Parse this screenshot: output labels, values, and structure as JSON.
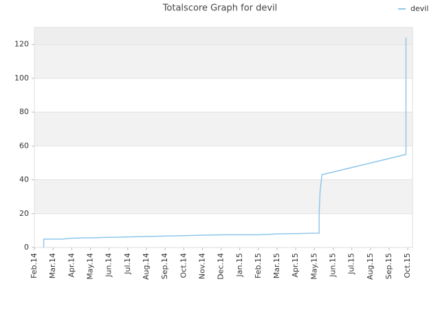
{
  "chart_data": {
    "type": "line",
    "title": "Totalscore Graph for devil",
    "x": [
      0.5,
      0.5,
      1.5,
      2,
      4,
      6,
      8,
      10,
      12,
      13,
      15.25,
      15.25,
      15.3,
      15.4,
      19.9,
      19.9
    ],
    "series": [
      {
        "name": "devil",
        "color": "#8ec6ea",
        "values": [
          0,
          5,
          5,
          5.5,
          6,
          6.5,
          7,
          7.5,
          7.5,
          8,
          8.5,
          20,
          33,
          43,
          55,
          124
        ]
      }
    ],
    "xlim": [
      0,
      20.25
    ],
    "xticks": [
      {
        "value": 0,
        "label": "Feb.14"
      },
      {
        "value": 1,
        "label": "Mar.14"
      },
      {
        "value": 2,
        "label": "Apr.14"
      },
      {
        "value": 3,
        "label": "May.14"
      },
      {
        "value": 4,
        "label": "Jun.14"
      },
      {
        "value": 5,
        "label": "Jul.14"
      },
      {
        "value": 6,
        "label": "Aug.14"
      },
      {
        "value": 7,
        "label": "Sep.14"
      },
      {
        "value": 8,
        "label": "Oct.14"
      },
      {
        "value": 9,
        "label": "Nov.14"
      },
      {
        "value": 10,
        "label": "Dec.14"
      },
      {
        "value": 11,
        "label": "Jan.15"
      },
      {
        "value": 12,
        "label": "Feb.15"
      },
      {
        "value": 13,
        "label": "Mar.15"
      },
      {
        "value": 14,
        "label": "Apr.15"
      },
      {
        "value": 15,
        "label": "May.15"
      },
      {
        "value": 16,
        "label": "Jun.15"
      },
      {
        "value": 17,
        "label": "Jul.15"
      },
      {
        "value": 18,
        "label": "Aug.15"
      },
      {
        "value": 19,
        "label": "Sep.15"
      },
      {
        "value": 20,
        "label": "Oct.15"
      }
    ],
    "ylim": [
      0,
      130
    ],
    "yticks": [
      0,
      20,
      40,
      60,
      80,
      100,
      120
    ],
    "grid": true,
    "legend": "top-right"
  }
}
